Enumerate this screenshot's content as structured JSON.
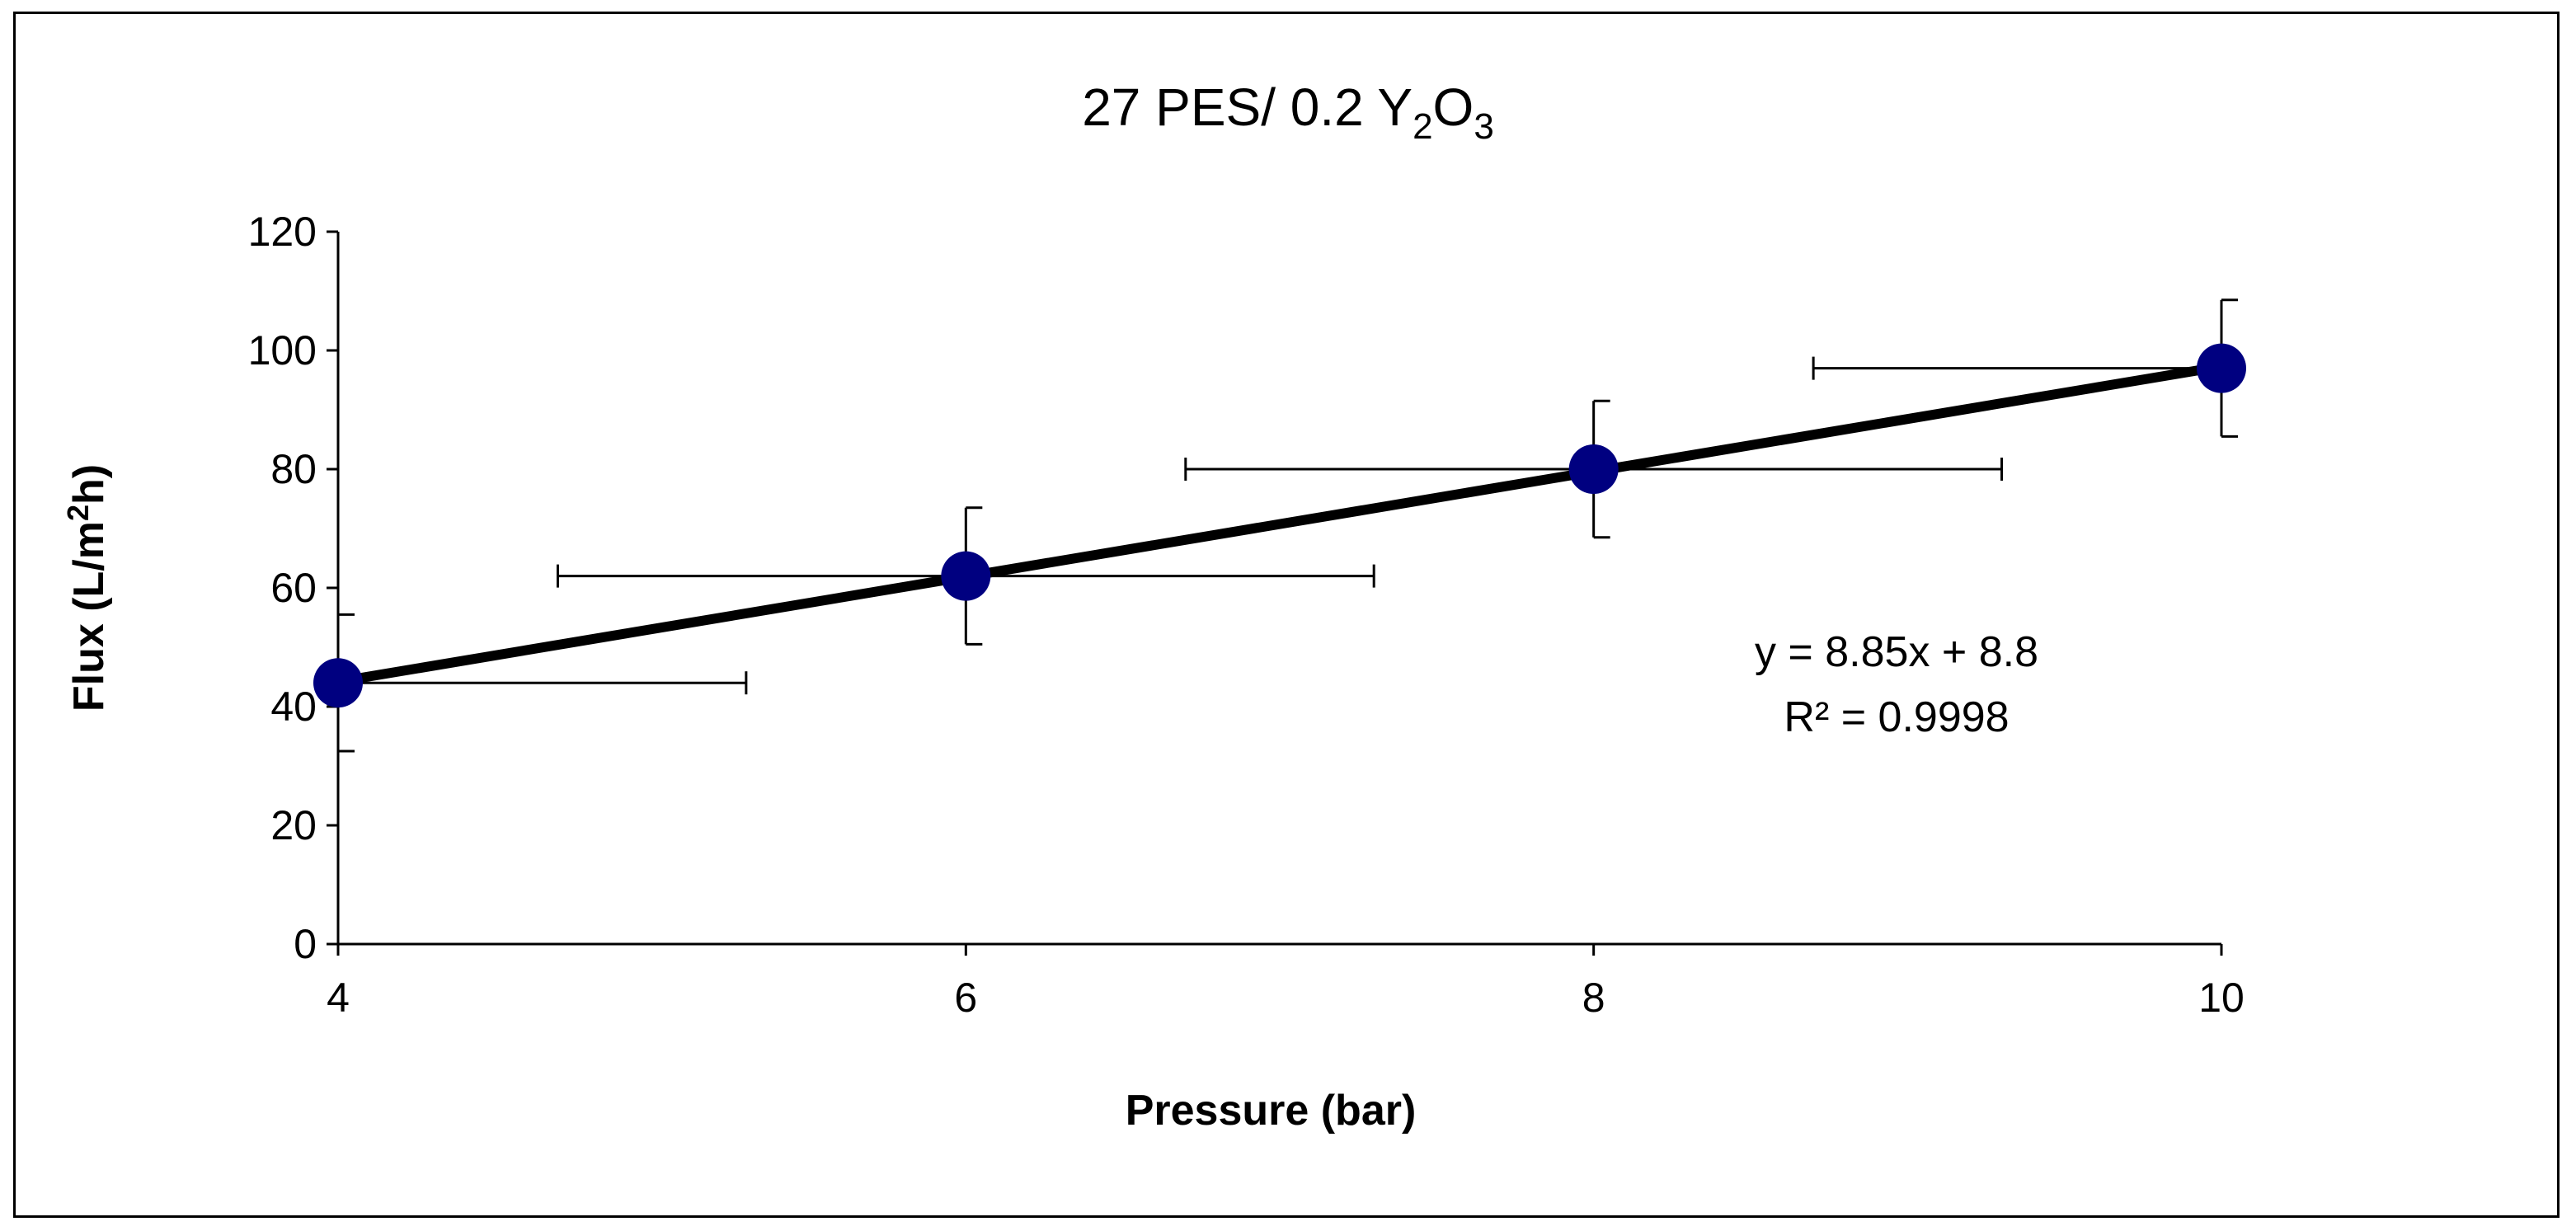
{
  "chart_data": {
    "type": "scatter",
    "title": {
      "prefix": "27 PES/ 0.2 Y",
      "sub1": "2",
      "mid": "O",
      "sub2": "3"
    },
    "xlabel": "Pressure (bar)",
    "ylabel": {
      "prefix": "Flux (L/m",
      "sup": "2",
      "suffix": "h)"
    },
    "xlim": [
      4,
      10
    ],
    "ylim": [
      0,
      120
    ],
    "xticks": [
      4,
      6,
      8,
      10
    ],
    "xtick_labels": [
      "4",
      "6",
      "8",
      "10"
    ],
    "yticks": [
      0,
      20,
      40,
      60,
      80,
      100,
      120
    ],
    "ytick_labels": [
      "0",
      "20",
      "40",
      "60",
      "80",
      "100",
      "120"
    ],
    "grid": false,
    "series": [
      {
        "name": "Flux",
        "x": [
          4,
          6,
          8,
          10
        ],
        "y": [
          44,
          62,
          80,
          97
        ],
        "marker_color": "#000080",
        "y_error": [
          11.5,
          11.5,
          11.5,
          11.5
        ],
        "x_error": [
          1.3,
          1.3,
          1.3,
          1.3
        ]
      }
    ],
    "trendline": {
      "type": "linear",
      "slope": 8.85,
      "intercept": 8.8,
      "equation_text": "y = 8.85x + 8.8",
      "r2_text": "R² = 0.9998",
      "color": "#000000"
    }
  }
}
